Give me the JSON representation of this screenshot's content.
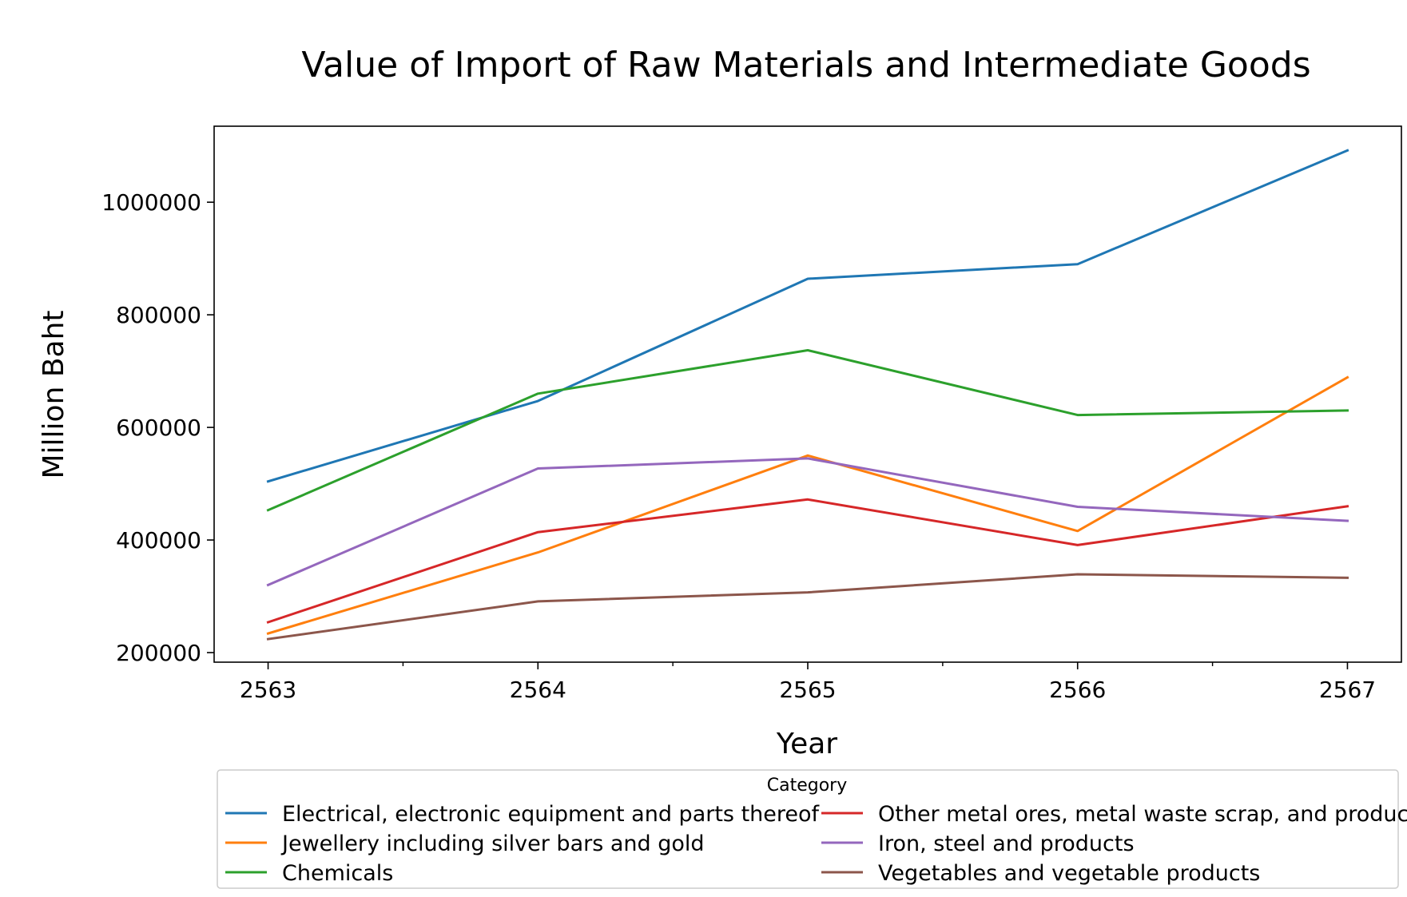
{
  "chart_data": {
    "type": "line",
    "title": "Value of Import of Raw Materials and Intermediate Goods",
    "xlabel": "Year",
    "ylabel": "Million Baht",
    "x": [
      2563,
      2564,
      2565,
      2566,
      2567
    ],
    "x_tick_labels": [
      "2563",
      "2564",
      "2565",
      "2566",
      "2567"
    ],
    "y_ticks": [
      200000,
      400000,
      600000,
      800000,
      1000000
    ],
    "y_tick_labels": [
      "200000",
      "400000",
      "600000",
      "800000",
      "1000000"
    ],
    "xlim": [
      2562.8,
      2567.2
    ],
    "ylim": [
      183000,
      1135000
    ],
    "grid": false,
    "legend": {
      "title": "Category",
      "placement": "below",
      "columns": 2
    },
    "series": [
      {
        "name": "Electrical, electronic equipment and parts thereof",
        "color": "#1f77b4",
        "values": [
          504000,
          647000,
          864000,
          890000,
          1092000
        ]
      },
      {
        "name": "Jewellery including silver bars and gold",
        "color": "#ff7f0e",
        "values": [
          234000,
          378000,
          550000,
          416000,
          689000
        ]
      },
      {
        "name": "Chemicals",
        "color": "#2ca02c",
        "values": [
          453000,
          660000,
          737000,
          622000,
          630000
        ]
      },
      {
        "name": "Other metal ores, metal waste scrap, and products",
        "color": "#d62728",
        "values": [
          254000,
          414000,
          472000,
          391000,
          460000
        ]
      },
      {
        "name": "Iron, steel and products",
        "color": "#9467bd",
        "values": [
          320000,
          527000,
          545000,
          459000,
          434000
        ]
      },
      {
        "name": "Vegetables and vegetable products",
        "color": "#8c564b",
        "values": [
          224000,
          291000,
          307000,
          339000,
          333000
        ]
      }
    ]
  }
}
